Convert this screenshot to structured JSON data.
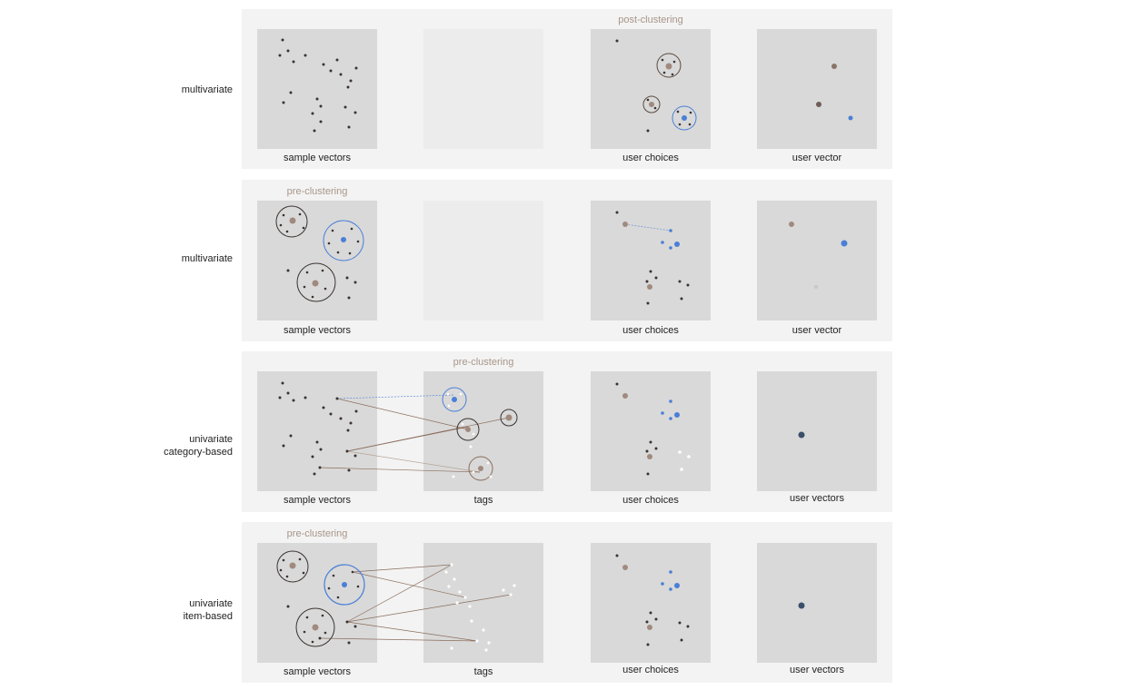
{
  "colors": {
    "row_bg": "#f3f3f3",
    "panel_bg": "#d9d9d9",
    "dot_dark": "#3a3330",
    "dot_brown": "#a08a7e",
    "dot_blue": "#4a7fd6",
    "dot_white": "#ffffff",
    "note_text": "#a89588",
    "link_line": "#8a6d5c",
    "link_blue": "#5b86d8"
  },
  "rows": [
    {
      "label_lines": [
        "multivariate"
      ],
      "note": "post-clustering",
      "captions": [
        "sample vectors",
        "",
        "user choices",
        "user vector"
      ]
    },
    {
      "label_lines": [
        "multivariate"
      ],
      "note": "pre-clustering",
      "captions": [
        "sample vectors",
        "",
        "user choices",
        "user vector"
      ]
    },
    {
      "label_lines": [
        "univariate",
        "category-based"
      ],
      "note": "pre-clustering",
      "captions": [
        "sample vectors",
        "tags",
        "user choices",
        "user vectors"
      ]
    },
    {
      "label_lines": [
        "univariate",
        "item-based"
      ],
      "note": "pre-clustering",
      "captions": [
        "sample vectors",
        "tags",
        "user choices",
        "user vectors"
      ]
    }
  ]
}
